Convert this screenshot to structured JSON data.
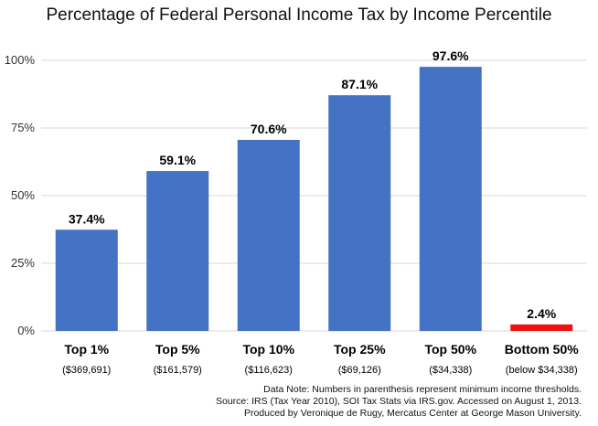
{
  "chart_data": {
    "type": "bar",
    "title": "Percentage of Federal Personal Income Tax by Income Percentile",
    "categories": [
      "Top 1%",
      "Top 5%",
      "Top 10%",
      "Top 25%",
      "Top 50%",
      "Bottom 50%"
    ],
    "sublabels": [
      "($369,691)",
      "($161,579)",
      "($116,623)",
      "($69,126)",
      "($34,338)",
      "(below $34,338)"
    ],
    "values": [
      37.4,
      59.1,
      70.6,
      87.1,
      97.6,
      2.4
    ],
    "value_labels": [
      "37.4%",
      "59.1%",
      "70.6%",
      "87.1%",
      "97.6%",
      "2.4%"
    ],
    "colors": [
      "#4472c4",
      "#4472c4",
      "#4472c4",
      "#4472c4",
      "#4472c4",
      "#ee1111"
    ],
    "ylim": [
      0,
      100
    ],
    "yticks": [
      0,
      25,
      50,
      75,
      100
    ],
    "ytick_labels": [
      "0%",
      "25%",
      "50%",
      "75%",
      "100%"
    ],
    "grid": true,
    "grid_color": "#d9d9d9",
    "xlabel": "",
    "ylabel": ""
  },
  "notes": [
    "Data Note: Numbers in parenthesis represent minimum income thresholds.",
    "Source: IRS (Tax Year 2010), SOI Tax Stats via IRS.gov. Accessed on August 1, 2013.",
    "Produced by Veronique de Rugy, Mercatus Center at George Mason University."
  ]
}
